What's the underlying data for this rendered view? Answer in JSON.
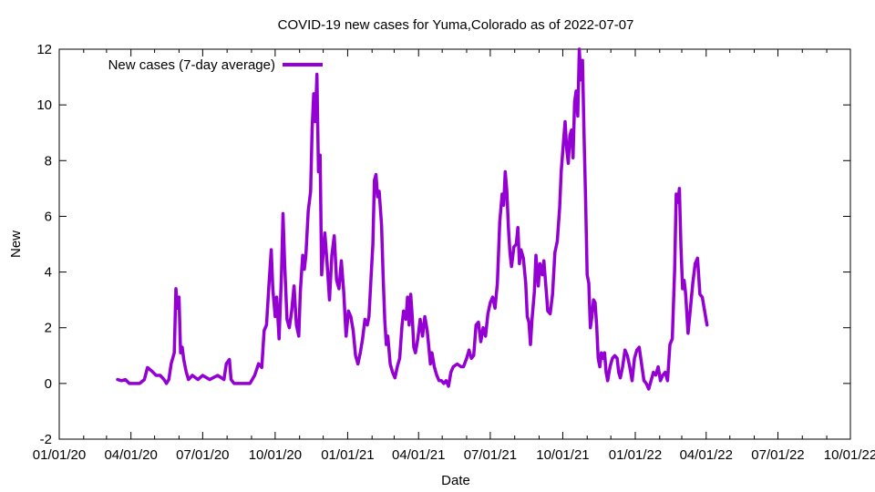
{
  "chart_data": {
    "type": "line",
    "title": "COVID-19 new cases for Yuma,Colorado as of 2022-07-07",
    "xlabel": "Date",
    "ylabel": "New",
    "x_axis": {
      "type": "date",
      "range": [
        "2020-01-01",
        "2022-10-01"
      ],
      "ticks": [
        {
          "date": "2020-01-01",
          "label": "01/01/20"
        },
        {
          "date": "2020-04-01",
          "label": "04/01/20"
        },
        {
          "date": "2020-07-01",
          "label": "07/01/20"
        },
        {
          "date": "2020-10-01",
          "label": "10/01/20"
        },
        {
          "date": "2021-01-01",
          "label": "01/01/21"
        },
        {
          "date": "2021-04-01",
          "label": "04/01/21"
        },
        {
          "date": "2021-07-01",
          "label": "07/01/21"
        },
        {
          "date": "2021-10-01",
          "label": "10/01/21"
        },
        {
          "date": "2022-01-01",
          "label": "01/01/22"
        },
        {
          "date": "2022-04-01",
          "label": "04/01/22"
        },
        {
          "date": "2022-07-01",
          "label": "07/01/22"
        },
        {
          "date": "2022-10-01",
          "label": "10/01/22"
        }
      ]
    },
    "y_axis": {
      "range": [
        -2,
        12
      ],
      "ticks": [
        -2,
        0,
        2,
        4,
        6,
        8,
        10,
        12
      ]
    },
    "grid": false,
    "legend_position": "top-left",
    "series": [
      {
        "name": "New cases (7-day average)",
        "color": "#9400d3",
        "points": [
          [
            "2020-03-15",
            0.14
          ],
          [
            "2020-03-20",
            0.1
          ],
          [
            "2020-03-25",
            0.14
          ],
          [
            "2020-03-30",
            0.0
          ],
          [
            "2020-04-05",
            0.0
          ],
          [
            "2020-04-12",
            0.0
          ],
          [
            "2020-04-18",
            0.14
          ],
          [
            "2020-04-22",
            0.57
          ],
          [
            "2020-04-28",
            0.43
          ],
          [
            "2020-05-03",
            0.29
          ],
          [
            "2020-05-08",
            0.29
          ],
          [
            "2020-05-13",
            0.14
          ],
          [
            "2020-05-16",
            0.0
          ],
          [
            "2020-05-19",
            0.14
          ],
          [
            "2020-05-22",
            0.71
          ],
          [
            "2020-05-26",
            1.1
          ],
          [
            "2020-05-28",
            3.4
          ],
          [
            "2020-05-30",
            2.7
          ],
          [
            "2020-06-01",
            3.1
          ],
          [
            "2020-06-03",
            1.1
          ],
          [
            "2020-06-05",
            1.3
          ],
          [
            "2020-06-07",
            0.86
          ],
          [
            "2020-06-10",
            0.43
          ],
          [
            "2020-06-13",
            0.14
          ],
          [
            "2020-06-18",
            0.29
          ],
          [
            "2020-06-25",
            0.14
          ],
          [
            "2020-07-01",
            0.29
          ],
          [
            "2020-07-10",
            0.14
          ],
          [
            "2020-07-20",
            0.29
          ],
          [
            "2020-07-28",
            0.14
          ],
          [
            "2020-07-31",
            0.71
          ],
          [
            "2020-08-04",
            0.86
          ],
          [
            "2020-08-06",
            0.14
          ],
          [
            "2020-08-10",
            0.0
          ],
          [
            "2020-08-20",
            0.0
          ],
          [
            "2020-08-30",
            0.0
          ],
          [
            "2020-09-05",
            0.29
          ],
          [
            "2020-09-10",
            0.71
          ],
          [
            "2020-09-14",
            0.57
          ],
          [
            "2020-09-17",
            1.9
          ],
          [
            "2020-09-20",
            2.1
          ],
          [
            "2020-09-23",
            3.5
          ],
          [
            "2020-09-26",
            4.8
          ],
          [
            "2020-09-28",
            3.4
          ],
          [
            "2020-10-01",
            2.4
          ],
          [
            "2020-10-03",
            3.1
          ],
          [
            "2020-10-06",
            1.6
          ],
          [
            "2020-10-09",
            3.9
          ],
          [
            "2020-10-11",
            6.1
          ],
          [
            "2020-10-13",
            4.3
          ],
          [
            "2020-10-16",
            2.3
          ],
          [
            "2020-10-19",
            2.0
          ],
          [
            "2020-10-22",
            2.6
          ],
          [
            "2020-10-25",
            3.5
          ],
          [
            "2020-10-28",
            2.1
          ],
          [
            "2020-10-31",
            1.7
          ],
          [
            "2020-11-02",
            3.3
          ],
          [
            "2020-11-05",
            4.6
          ],
          [
            "2020-11-07",
            4.1
          ],
          [
            "2020-11-09",
            4.6
          ],
          [
            "2020-11-12",
            6.2
          ],
          [
            "2020-11-15",
            6.9
          ],
          [
            "2020-11-17",
            9.2
          ],
          [
            "2020-11-19",
            10.4
          ],
          [
            "2020-11-21",
            9.4
          ],
          [
            "2020-11-23",
            11.1
          ],
          [
            "2020-11-25",
            7.6
          ],
          [
            "2020-11-27",
            8.2
          ],
          [
            "2020-11-29",
            3.9
          ],
          [
            "2020-12-01",
            4.7
          ],
          [
            "2020-12-03",
            5.4
          ],
          [
            "2020-12-06",
            4.3
          ],
          [
            "2020-12-09",
            3.0
          ],
          [
            "2020-12-12",
            4.6
          ],
          [
            "2020-12-15",
            5.3
          ],
          [
            "2020-12-18",
            3.7
          ],
          [
            "2020-12-21",
            3.4
          ],
          [
            "2020-12-24",
            4.4
          ],
          [
            "2020-12-27",
            3.3
          ],
          [
            "2020-12-30",
            1.7
          ],
          [
            "2021-01-02",
            2.6
          ],
          [
            "2021-01-05",
            2.4
          ],
          [
            "2021-01-08",
            1.9
          ],
          [
            "2021-01-11",
            1.0
          ],
          [
            "2021-01-14",
            0.7
          ],
          [
            "2021-01-17",
            1.1
          ],
          [
            "2021-01-20",
            1.6
          ],
          [
            "2021-01-23",
            2.3
          ],
          [
            "2021-01-26",
            2.1
          ],
          [
            "2021-01-28",
            2.4
          ],
          [
            "2021-01-31",
            4.0
          ],
          [
            "2021-02-02",
            5.0
          ],
          [
            "2021-02-04",
            7.3
          ],
          [
            "2021-02-06",
            7.5
          ],
          [
            "2021-02-08",
            6.7
          ],
          [
            "2021-02-10",
            6.9
          ],
          [
            "2021-02-13",
            5.7
          ],
          [
            "2021-02-15",
            3.9
          ],
          [
            "2021-02-17",
            2.3
          ],
          [
            "2021-02-19",
            1.4
          ],
          [
            "2021-02-21",
            1.7
          ],
          [
            "2021-02-24",
            0.7
          ],
          [
            "2021-02-27",
            0.4
          ],
          [
            "2021-03-02",
            0.2
          ],
          [
            "2021-03-05",
            0.6
          ],
          [
            "2021-03-08",
            0.9
          ],
          [
            "2021-03-11",
            2.1
          ],
          [
            "2021-03-13",
            2.6
          ],
          [
            "2021-03-16",
            2.3
          ],
          [
            "2021-03-18",
            3.1
          ],
          [
            "2021-03-20",
            2.1
          ],
          [
            "2021-03-22",
            3.2
          ],
          [
            "2021-03-24",
            2.4
          ],
          [
            "2021-03-26",
            1.3
          ],
          [
            "2021-03-28",
            1.1
          ],
          [
            "2021-03-31",
            1.6
          ],
          [
            "2021-04-03",
            2.3
          ],
          [
            "2021-04-06",
            1.7
          ],
          [
            "2021-04-09",
            2.4
          ],
          [
            "2021-04-12",
            1.9
          ],
          [
            "2021-04-14",
            1.3
          ],
          [
            "2021-04-16",
            0.7
          ],
          [
            "2021-04-18",
            1.1
          ],
          [
            "2021-04-21",
            0.6
          ],
          [
            "2021-04-24",
            0.3
          ],
          [
            "2021-04-27",
            0.1
          ],
          [
            "2021-04-30",
            0.1
          ],
          [
            "2021-05-03",
            0.0
          ],
          [
            "2021-05-06",
            0.1
          ],
          [
            "2021-05-09",
            -0.1
          ],
          [
            "2021-05-12",
            0.4
          ],
          [
            "2021-05-15",
            0.6
          ],
          [
            "2021-05-20",
            0.7
          ],
          [
            "2021-05-25",
            0.6
          ],
          [
            "2021-05-28",
            0.6
          ],
          [
            "2021-06-01",
            0.9
          ],
          [
            "2021-06-04",
            1.2
          ],
          [
            "2021-06-07",
            0.9
          ],
          [
            "2021-06-10",
            1.0
          ],
          [
            "2021-06-13",
            2.1
          ],
          [
            "2021-06-16",
            2.2
          ],
          [
            "2021-06-19",
            1.5
          ],
          [
            "2021-06-22",
            2.0
          ],
          [
            "2021-06-25",
            1.7
          ],
          [
            "2021-06-28",
            2.5
          ],
          [
            "2021-07-01",
            2.9
          ],
          [
            "2021-07-04",
            3.1
          ],
          [
            "2021-07-07",
            2.7
          ],
          [
            "2021-07-10",
            3.6
          ],
          [
            "2021-07-13",
            5.8
          ],
          [
            "2021-07-16",
            6.8
          ],
          [
            "2021-07-18",
            6.4
          ],
          [
            "2021-07-20",
            7.6
          ],
          [
            "2021-07-22",
            6.9
          ],
          [
            "2021-07-24",
            5.6
          ],
          [
            "2021-07-26",
            4.7
          ],
          [
            "2021-07-28",
            4.2
          ],
          [
            "2021-07-31",
            4.9
          ],
          [
            "2021-08-03",
            5.0
          ],
          [
            "2021-08-05",
            5.6
          ],
          [
            "2021-08-07",
            4.3
          ],
          [
            "2021-08-09",
            4.8
          ],
          [
            "2021-08-12",
            4.5
          ],
          [
            "2021-08-15",
            3.6
          ],
          [
            "2021-08-17",
            2.4
          ],
          [
            "2021-08-19",
            2.2
          ],
          [
            "2021-08-21",
            1.4
          ],
          [
            "2021-08-23",
            2.3
          ],
          [
            "2021-08-26",
            3.3
          ],
          [
            "2021-08-28",
            4.6
          ],
          [
            "2021-08-31",
            3.5
          ],
          [
            "2021-09-02",
            4.3
          ],
          [
            "2021-09-05",
            3.9
          ],
          [
            "2021-09-07",
            4.4
          ],
          [
            "2021-09-09",
            3.7
          ],
          [
            "2021-09-12",
            2.6
          ],
          [
            "2021-09-15",
            2.5
          ],
          [
            "2021-09-18",
            3.2
          ],
          [
            "2021-09-21",
            4.7
          ],
          [
            "2021-09-24",
            5.1
          ],
          [
            "2021-09-27",
            6.3
          ],
          [
            "2021-09-29",
            7.6
          ],
          [
            "2021-10-02",
            8.7
          ],
          [
            "2021-10-04",
            9.4
          ],
          [
            "2021-10-06",
            8.4
          ],
          [
            "2021-10-08",
            7.9
          ],
          [
            "2021-10-10",
            8.9
          ],
          [
            "2021-10-12",
            9.1
          ],
          [
            "2021-10-14",
            8.1
          ],
          [
            "2021-10-16",
            10.1
          ],
          [
            "2021-10-18",
            10.5
          ],
          [
            "2021-10-20",
            9.6
          ],
          [
            "2021-10-22",
            12.0
          ],
          [
            "2021-10-24",
            10.9
          ],
          [
            "2021-10-26",
            11.6
          ],
          [
            "2021-10-28",
            8.9
          ],
          [
            "2021-10-30",
            6.6
          ],
          [
            "2021-11-01",
            3.9
          ],
          [
            "2021-11-03",
            3.6
          ],
          [
            "2021-11-05",
            2.0
          ],
          [
            "2021-11-07",
            2.4
          ],
          [
            "2021-11-09",
            3.0
          ],
          [
            "2021-11-11",
            2.9
          ],
          [
            "2021-11-13",
            2.1
          ],
          [
            "2021-11-15",
            0.9
          ],
          [
            "2021-11-17",
            0.6
          ],
          [
            "2021-11-19",
            1.1
          ],
          [
            "2021-11-21",
            0.9
          ],
          [
            "2021-11-23",
            1.1
          ],
          [
            "2021-11-25",
            0.4
          ],
          [
            "2021-11-27",
            0.1
          ],
          [
            "2021-11-30",
            0.6
          ],
          [
            "2021-12-03",
            0.9
          ],
          [
            "2021-12-06",
            1.0
          ],
          [
            "2021-12-09",
            0.9
          ],
          [
            "2021-12-11",
            0.4
          ],
          [
            "2021-12-13",
            0.2
          ],
          [
            "2021-12-16",
            0.6
          ],
          [
            "2021-12-19",
            1.2
          ],
          [
            "2021-12-22",
            1.0
          ],
          [
            "2021-12-25",
            0.6
          ],
          [
            "2021-12-28",
            0.1
          ],
          [
            "2021-12-31",
            0.9
          ],
          [
            "2022-01-03",
            1.2
          ],
          [
            "2022-01-06",
            1.3
          ],
          [
            "2022-01-09",
            0.7
          ],
          [
            "2022-01-12",
            0.1
          ],
          [
            "2022-01-15",
            0.0
          ],
          [
            "2022-01-18",
            -0.2
          ],
          [
            "2022-01-21",
            0.1
          ],
          [
            "2022-01-24",
            0.4
          ],
          [
            "2022-01-27",
            0.3
          ],
          [
            "2022-01-30",
            0.6
          ],
          [
            "2022-02-02",
            0.1
          ],
          [
            "2022-02-05",
            0.3
          ],
          [
            "2022-02-08",
            0.4
          ],
          [
            "2022-02-11",
            0.1
          ],
          [
            "2022-02-14",
            1.4
          ],
          [
            "2022-02-17",
            1.6
          ],
          [
            "2022-02-20",
            4.1
          ],
          [
            "2022-02-22",
            6.8
          ],
          [
            "2022-02-24",
            6.5
          ],
          [
            "2022-02-26",
            7.0
          ],
          [
            "2022-02-28",
            4.9
          ],
          [
            "2022-03-02",
            3.4
          ],
          [
            "2022-03-04",
            3.7
          ],
          [
            "2022-03-06",
            3.2
          ],
          [
            "2022-03-09",
            1.8
          ],
          [
            "2022-03-12",
            2.7
          ],
          [
            "2022-03-15",
            3.6
          ],
          [
            "2022-03-18",
            4.3
          ],
          [
            "2022-03-21",
            4.5
          ],
          [
            "2022-03-24",
            3.2
          ],
          [
            "2022-03-27",
            3.1
          ],
          [
            "2022-03-30",
            2.6
          ],
          [
            "2022-04-02",
            2.1
          ]
        ]
      }
    ]
  }
}
